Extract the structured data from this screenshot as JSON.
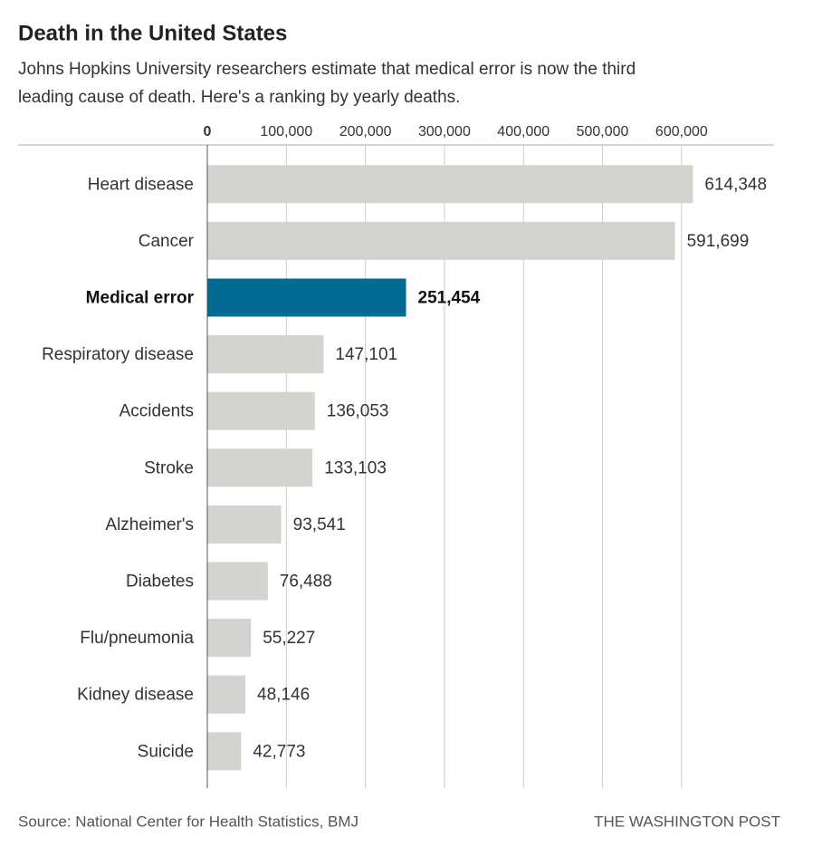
{
  "chart_data": {
    "type": "bar",
    "title": "Death in the United States",
    "subtitle": [
      "Johns Hopkins University researchers estimate that medical error is now the third",
      "leading cause of death. Here's a ranking by yearly deaths."
    ],
    "source": "Source: National Center for Health Statistics, BMJ",
    "credit": "THE WASHINGTON POST",
    "orientation": "horizontal",
    "categories": [
      "Heart disease",
      "Cancer",
      "Medical error",
      "Respiratory disease",
      "Accidents",
      "Stroke",
      "Alzheimer's",
      "Diabetes",
      "Flu/pneumonia",
      "Kidney disease",
      "Suicide"
    ],
    "values": [
      614348,
      591699,
      251454,
      147101,
      136053,
      133103,
      93541,
      76488,
      55227,
      48146,
      42773
    ],
    "value_labels": [
      "614,348",
      "591,699",
      "251,454",
      "147,101",
      "136,053",
      "133,103",
      "93,541",
      "76,488",
      "55,227",
      "48,146",
      "42,773"
    ],
    "colors": [
      "#d3d3cf",
      "#d3d3cf",
      "#036a93",
      "#d3d3cf",
      "#d3d3cf",
      "#d3d3cf",
      "#d3d3cf",
      "#d3d3cf",
      "#d3d3cf",
      "#d3d3cf",
      "#d3d3cf"
    ],
    "highlight_color": "#036a93",
    "xlim": [
      0,
      717000
    ],
    "xticks": [
      0,
      {
        "value": 100000,
        "label": "100,000"
      },
      {
        "value": 200000,
        "label": "200,000"
      },
      {
        "value": 300000,
        "label": "300,000"
      },
      {
        "value": 400000,
        "label": "400,000"
      },
      {
        "value": 500000,
        "label": "500,000"
      },
      {
        "value": 600000,
        "label": "600,000"
      }
    ],
    "grid": true
  }
}
